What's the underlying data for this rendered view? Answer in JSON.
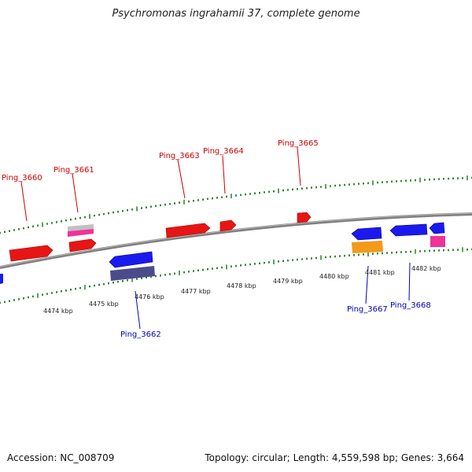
{
  "title": "Psychromonas ingrahamii 37, complete genome",
  "footer": {
    "accession": "Accession: NC_008709",
    "summary": "Topology: circular; Length: 4,559,598 bp; Genes: 3,664"
  },
  "colors": {
    "forward_label": "#cc0000",
    "reverse_label": "#0000bb",
    "tick": "#2f8a2f",
    "backbone": "#808080",
    "red": "#ee1111",
    "blue": "#1a1aee",
    "pink": "#ee3399",
    "gray": "#b0b0b0",
    "orange": "#f39a1a",
    "slate": "#4b4b8c"
  },
  "tick_labels": [
    "4474 kbp",
    "4475 kbp",
    "4476 kbp",
    "4477 kbp",
    "4478 kbp",
    "4479 kbp",
    "4480 kbp",
    "4481 kbp",
    "4482 kbp"
  ],
  "gene_labels": {
    "forward": [
      "Ping_3660",
      "Ping_3661",
      "Ping_3663",
      "Ping_3664",
      "Ping_3665"
    ],
    "reverse": [
      "Ping_3662",
      "Ping_3667",
      "Ping_3668"
    ]
  }
}
